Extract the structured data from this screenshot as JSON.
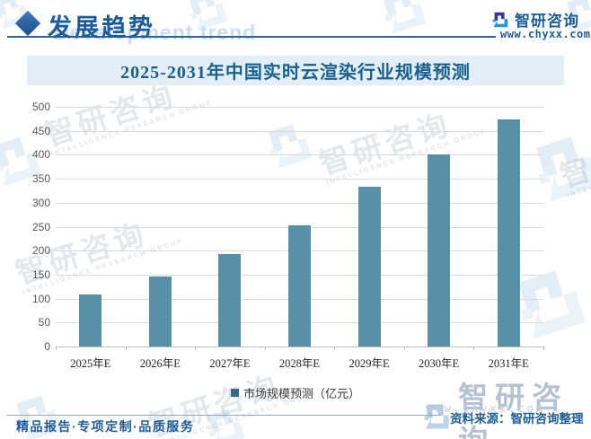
{
  "header": {
    "section_title": "发展趋势",
    "section_title_en": "Development trend",
    "brand_name": "智研咨询",
    "website": "www.chyxx.com"
  },
  "chart_data": {
    "type": "bar",
    "title": "2025-2031年中国实时云渲染行业规模预测",
    "categories": [
      "2025年E",
      "2026年E",
      "2027年E",
      "2028年E",
      "2029年E",
      "2030年E",
      "2031年E"
    ],
    "values": [
      108,
      147,
      193,
      252,
      333,
      401,
      473
    ],
    "series_name": "市场规模预测（亿元）",
    "xlabel": "",
    "ylabel": "",
    "ylim": [
      0,
      500
    ],
    "ytick_step": 50,
    "grid": true,
    "legend_position": "bottom",
    "bar_color": "#5890A8",
    "legend_marker_color": "#356A80"
  },
  "legend": {
    "label": "市场规模预测（亿元）"
  },
  "footer": {
    "tagline": "精品报告·专项定制·品质服务",
    "source": "资料来源：智研咨询整理"
  },
  "watermark": {
    "brand": "智研咨询",
    "brand_en": "INTELLIGENCE RESEARCH GROUP",
    "site": "www.chyxx.com"
  },
  "colors": {
    "accent_blue": "#1D5C99",
    "title_band_bg": "#E3EEF7",
    "bar": "#5890A8",
    "gridline": "#DCDCDC"
  }
}
